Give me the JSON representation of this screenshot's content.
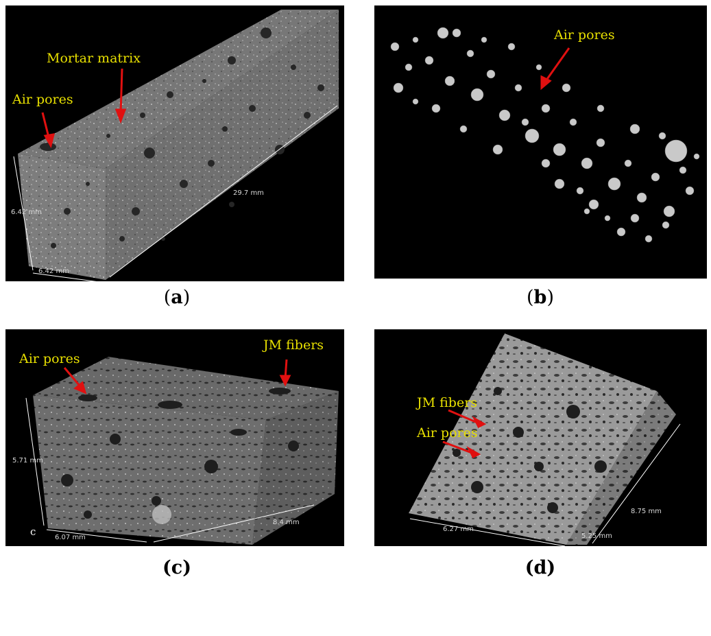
{
  "panels": {
    "a": {
      "caption_open": "(",
      "caption_letter": "a",
      "caption_close": ")",
      "annotations": {
        "mortar": "Mortar matrix",
        "pores": "Air pores"
      },
      "dims": {
        "height": "6.42 mm",
        "width": "6.42 mm",
        "length": "29.7 mm"
      }
    },
    "b": {
      "caption_open": "(",
      "caption_letter": "b",
      "caption_close": ")",
      "annotations": {
        "pores": "Air pores"
      }
    },
    "c": {
      "caption": "(c)",
      "annotations": {
        "pores": "Air pores",
        "fibers": "JM fibers"
      },
      "dims": {
        "height": "5.71 mm",
        "width": "6.07 mm",
        "length": "8.4 mm"
      },
      "panel_letter": "c"
    },
    "d": {
      "caption": "(d)",
      "annotations": {
        "fibers": "JM fibers",
        "pores": "Air pores"
      },
      "dims": {
        "width": "6.27 mm",
        "length": "8.75 mm",
        "depth": "5.25 mm"
      }
    }
  },
  "colors": {
    "annotation": "#e8e000",
    "arrow": "#e01010",
    "background": "#000000"
  }
}
